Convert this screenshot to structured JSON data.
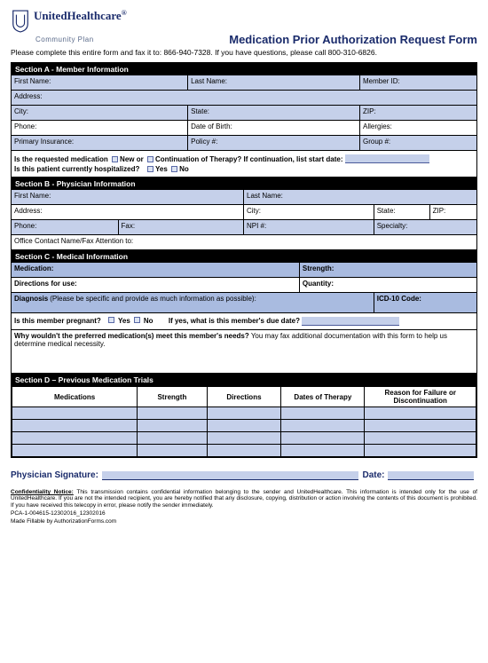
{
  "logo": {
    "main": "UnitedHealthcare",
    "sub": "Community Plan",
    "reg": "®"
  },
  "title": "Medication Prior Authorization Request Form",
  "instructions": "Please complete this entire form and fax it to: 866-940-7328. If you have questions, please call 800-310-6826.",
  "sectionA": {
    "header": "Section A - Member Information",
    "firstName": "First Name:",
    "lastName": "Last Name:",
    "memberId": "Member ID:",
    "address": "Address:",
    "city": "City:",
    "state": "State:",
    "zip": "ZIP:",
    "phone": "Phone:",
    "dob": "Date of Birth:",
    "allergies": "Allergies:",
    "primaryIns": "Primary Insurance:",
    "policy": "Policy #:",
    "group": "Group #:",
    "q1a": "Is the requested medication",
    "q1b": "New or",
    "q1c": "Continuation of Therapy? If continuation, list start date:",
    "q2a": "Is this patient currently hospitalized?",
    "q2b": "Yes",
    "q2c": "No"
  },
  "sectionB": {
    "header": "Section B - Physician Information",
    "firstName": "First Name:",
    "lastName": "Last Name:",
    "address": "Address:",
    "city": "City:",
    "state": "State:",
    "zip": "ZIP:",
    "phone": "Phone:",
    "fax": "Fax:",
    "npi": "NPI #:",
    "specialty": "Specialty:",
    "contact": "Office Contact Name/Fax Attention to:"
  },
  "sectionC": {
    "header": "Section C - Medical Information",
    "medication": "Medication:",
    "strength": "Strength:",
    "directions": "Directions for use:",
    "quantity": "Quantity:",
    "diagnosis": "Diagnosis",
    "diagnosisNote": "(Please be specific and provide as much information as possible):",
    "icd": "ICD-10 Code:",
    "pregnant": "Is this member pregnant?",
    "yes": "Yes",
    "no": "No",
    "dueDate": "If yes, what is this member's due date?",
    "whyNot": "Why wouldn't the preferred medication(s) meet this member's needs?",
    "whyNotNote": " You may fax additional documentation with this form to help us determine medical necessity."
  },
  "sectionD": {
    "header": "Section D – Previous Medication Trials",
    "cols": [
      "Medications",
      "Strength",
      "Directions",
      "Dates of Therapy",
      "Reason for Failure or Discontinuation"
    ],
    "rowCount": 4
  },
  "signature": {
    "sig": "Physician Signature:",
    "date": "Date:"
  },
  "confidentiality": {
    "label": "Confidentiality Notice:",
    "text": " This transmission contains confidential information belonging to the sender and UnitedHealthcare. This information is intended only for the use of UnitedHealthcare. If you are not the intended recipient, you are hereby notified that any disclosure, copying, distribution or action involving the contents of this document is prohibited. If you have received this telecopy in error, please notify the sender immediately."
  },
  "refs": {
    "line1": "PCA-1-004615-12302016_12302016",
    "line2": "Made Fillable by AuthorizationForms.com"
  },
  "colors": {
    "darkBlue": "#1a2b6b",
    "cellBlue": "#c5d0ea",
    "borderBlack": "#000000",
    "white": "#ffffff"
  }
}
